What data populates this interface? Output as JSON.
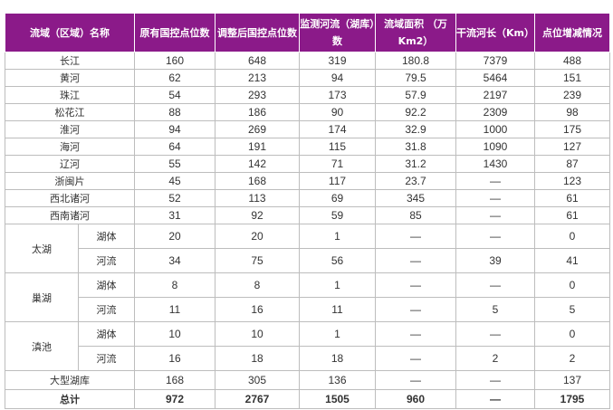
{
  "table": {
    "headers": [
      "流域（区域）名称",
      "原有国控点位数",
      "调整后国控点位数",
      "监测河流（湖库）数",
      "流域面积 （万Km2）",
      "干流河长（Km）",
      "点位增减情况"
    ],
    "rows": [
      {
        "name": "长江",
        "values": [
          "160",
          "648",
          "319",
          "180.8",
          "7379",
          "488"
        ]
      },
      {
        "name": "黄河",
        "values": [
          "62",
          "213",
          "94",
          "79.5",
          "5464",
          "151"
        ]
      },
      {
        "name": "珠江",
        "values": [
          "54",
          "293",
          "173",
          "57.9",
          "2197",
          "239"
        ]
      },
      {
        "name": "松花江",
        "values": [
          "88",
          "186",
          "90",
          "92.2",
          "2309",
          "98"
        ]
      },
      {
        "name": "淮河",
        "values": [
          "94",
          "269",
          "174",
          "32.9",
          "1000",
          "175"
        ]
      },
      {
        "name": "海河",
        "values": [
          "64",
          "191",
          "115",
          "31.8",
          "1090",
          "127"
        ]
      },
      {
        "name": "辽河",
        "values": [
          "55",
          "142",
          "71",
          "31.2",
          "1430",
          "87"
        ]
      },
      {
        "name": "浙闽片",
        "values": [
          "45",
          "168",
          "117",
          "23.7",
          "—",
          "123"
        ]
      },
      {
        "name": "西北诸河",
        "values": [
          "52",
          "113",
          "69",
          "345",
          "—",
          "61"
        ]
      },
      {
        "name": "西南诸河",
        "values": [
          "31",
          "92",
          "59",
          "85",
          "—",
          "61"
        ]
      }
    ],
    "lakes": [
      {
        "name": "太湖",
        "sub": [
          {
            "name": "湖体",
            "values": [
              "20",
              "20",
              "1",
              "—",
              "—",
              "0"
            ]
          },
          {
            "name": "河流",
            "values": [
              "34",
              "75",
              "56",
              "—",
              "39",
              "41"
            ]
          }
        ]
      },
      {
        "name": "巢湖",
        "sub": [
          {
            "name": "湖体",
            "values": [
              "8",
              "8",
              "1",
              "—",
              "—",
              "0"
            ]
          },
          {
            "name": "河流",
            "values": [
              "11",
              "16",
              "11",
              "—",
              "5",
              "5"
            ]
          }
        ]
      },
      {
        "name": "滇池",
        "sub": [
          {
            "name": "湖体",
            "values": [
              "10",
              "10",
              "1",
              "—",
              "—",
              "0"
            ]
          },
          {
            "name": "河流",
            "values": [
              "16",
              "18",
              "18",
              "—",
              "2",
              "2"
            ]
          }
        ]
      }
    ],
    "large_lakes": {
      "name": "大型湖库",
      "values": [
        "168",
        "305",
        "136",
        "—",
        "—",
        "137"
      ]
    },
    "total": {
      "name": "总计",
      "values": [
        "972",
        "2767",
        "1505",
        "960",
        "—",
        "1795"
      ]
    }
  },
  "colors": {
    "header_bg": "#8b1a89",
    "header_text": "#ffffff",
    "border": "#bdbdbd"
  }
}
